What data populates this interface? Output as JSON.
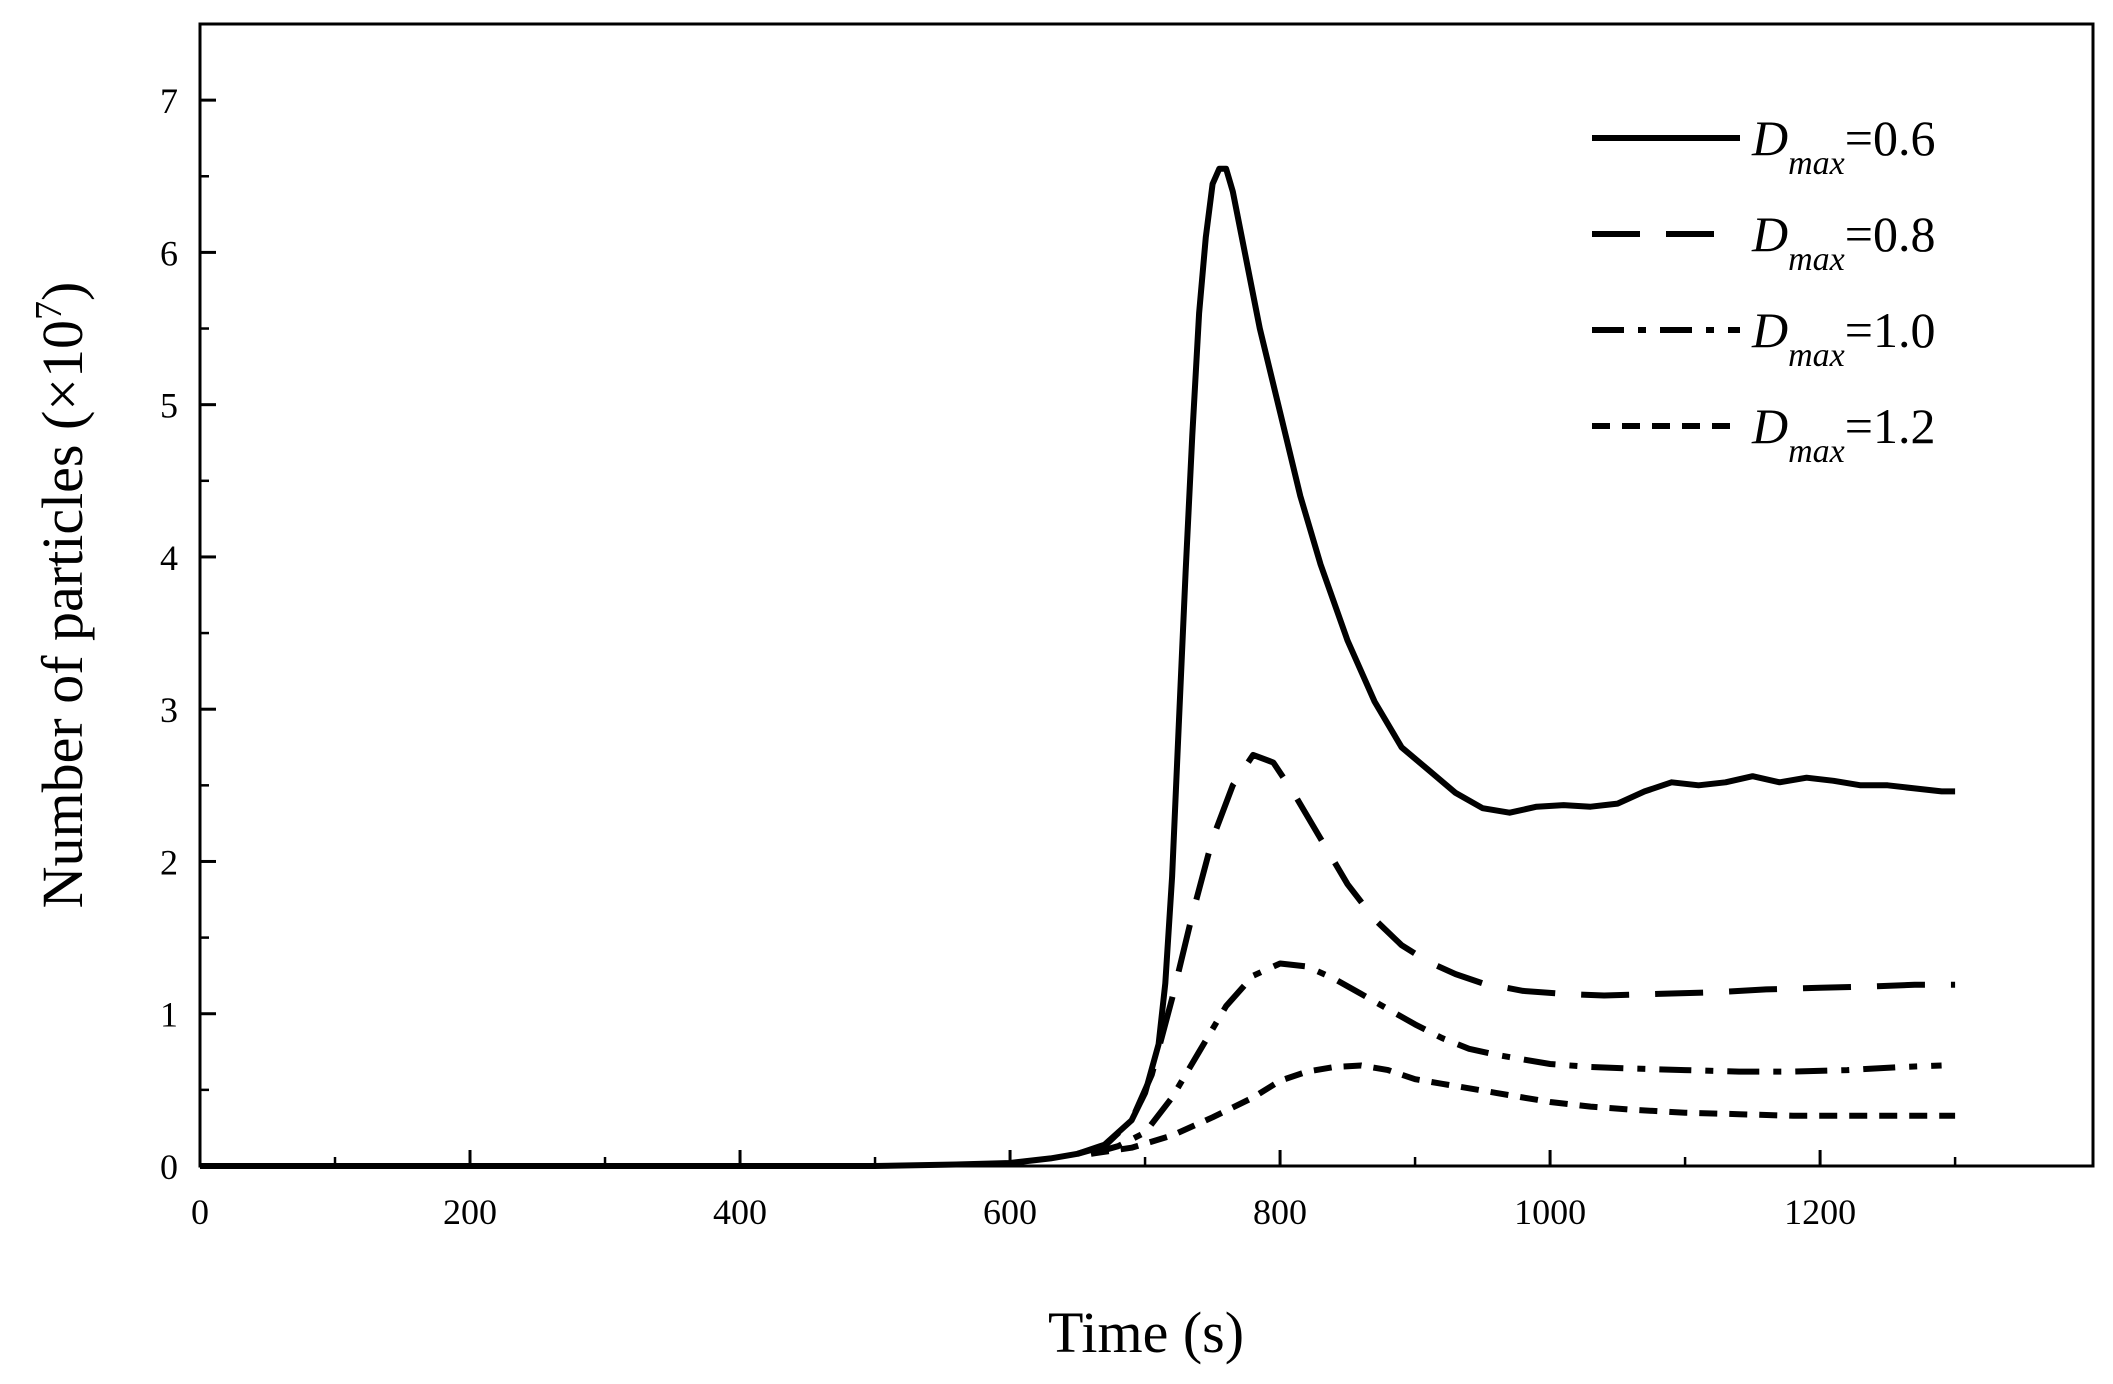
{
  "chart_data": {
    "type": "line",
    "title": "",
    "xlabel": "Time (s)",
    "ylabel": {
      "main": "Number of  particles (×10",
      "sup": "7",
      "close": ")"
    },
    "xlim": [
      0,
      1350
    ],
    "ylim": [
      0,
      7.5
    ],
    "xticks": [
      0,
      200,
      400,
      600,
      800,
      1000,
      1200
    ],
    "xtick_labels": [
      "0",
      "200",
      "400",
      "600",
      "800",
      "1000",
      "1200"
    ],
    "x_minor_step": 100,
    "yticks": [
      0,
      1,
      2,
      3,
      4,
      5,
      6,
      7
    ],
    "ytick_labels": [
      "0",
      "1",
      "2",
      "3",
      "4",
      "5",
      "6",
      "7"
    ],
    "y_minor_step": 0.5,
    "grid": false,
    "legend": "top-right",
    "series": [
      {
        "name": "D_max=0.6",
        "legend": {
          "base": "D",
          "sub": "max",
          "suffix": "=0.6"
        },
        "style": "solid",
        "color": "#000000",
        "points": [
          [
            0,
            0
          ],
          [
            500,
            0
          ],
          [
            560,
            0.01
          ],
          [
            600,
            0.02
          ],
          [
            630,
            0.05
          ],
          [
            650,
            0.08
          ],
          [
            670,
            0.14
          ],
          [
            690,
            0.3
          ],
          [
            700,
            0.48
          ],
          [
            710,
            0.8
          ],
          [
            715,
            1.2
          ],
          [
            720,
            1.9
          ],
          [
            725,
            2.9
          ],
          [
            730,
            3.9
          ],
          [
            735,
            4.8
          ],
          [
            740,
            5.6
          ],
          [
            745,
            6.1
          ],
          [
            750,
            6.45
          ],
          [
            755,
            6.55
          ],
          [
            760,
            6.55
          ],
          [
            765,
            6.4
          ],
          [
            775,
            5.95
          ],
          [
            785,
            5.5
          ],
          [
            800,
            4.95
          ],
          [
            815,
            4.4
          ],
          [
            830,
            3.95
          ],
          [
            850,
            3.45
          ],
          [
            870,
            3.05
          ],
          [
            890,
            2.75
          ],
          [
            910,
            2.6
          ],
          [
            930,
            2.45
          ],
          [
            950,
            2.35
          ],
          [
            970,
            2.32
          ],
          [
            990,
            2.36
          ],
          [
            1010,
            2.37
          ],
          [
            1030,
            2.36
          ],
          [
            1050,
            2.38
          ],
          [
            1070,
            2.46
          ],
          [
            1090,
            2.52
          ],
          [
            1110,
            2.5
          ],
          [
            1130,
            2.52
          ],
          [
            1150,
            2.56
          ],
          [
            1170,
            2.52
          ],
          [
            1190,
            2.55
          ],
          [
            1210,
            2.53
          ],
          [
            1230,
            2.5
          ],
          [
            1250,
            2.5
          ],
          [
            1270,
            2.48
          ],
          [
            1290,
            2.46
          ],
          [
            1300,
            2.46
          ]
        ]
      },
      {
        "name": "D_max=0.8",
        "legend": {
          "base": "D",
          "sub": "max",
          "suffix": "=0.8"
        },
        "style": "dashed",
        "color": "#000000",
        "points": [
          [
            650,
            0.08
          ],
          [
            670,
            0.13
          ],
          [
            690,
            0.3
          ],
          [
            705,
            0.6
          ],
          [
            720,
            1.1
          ],
          [
            735,
            1.65
          ],
          [
            750,
            2.15
          ],
          [
            765,
            2.5
          ],
          [
            780,
            2.7
          ],
          [
            795,
            2.65
          ],
          [
            810,
            2.45
          ],
          [
            830,
            2.15
          ],
          [
            850,
            1.85
          ],
          [
            870,
            1.62
          ],
          [
            890,
            1.45
          ],
          [
            910,
            1.34
          ],
          [
            930,
            1.26
          ],
          [
            950,
            1.2
          ],
          [
            980,
            1.15
          ],
          [
            1010,
            1.13
          ],
          [
            1040,
            1.12
          ],
          [
            1080,
            1.13
          ],
          [
            1120,
            1.14
          ],
          [
            1160,
            1.16
          ],
          [
            1200,
            1.17
          ],
          [
            1240,
            1.18
          ],
          [
            1270,
            1.19
          ],
          [
            1300,
            1.19
          ]
        ]
      },
      {
        "name": "D_max=1.0",
        "legend": {
          "base": "D",
          "sub": "max",
          "suffix": "=1.0"
        },
        "style": "dashdot",
        "color": "#000000",
        "points": [
          [
            660,
            0.08
          ],
          [
            680,
            0.13
          ],
          [
            700,
            0.22
          ],
          [
            720,
            0.45
          ],
          [
            740,
            0.75
          ],
          [
            760,
            1.05
          ],
          [
            780,
            1.25
          ],
          [
            800,
            1.33
          ],
          [
            820,
            1.31
          ],
          [
            840,
            1.23
          ],
          [
            860,
            1.13
          ],
          [
            880,
            1.03
          ],
          [
            900,
            0.93
          ],
          [
            920,
            0.84
          ],
          [
            940,
            0.77
          ],
          [
            960,
            0.73
          ],
          [
            980,
            0.7
          ],
          [
            1000,
            0.67
          ],
          [
            1030,
            0.65
          ],
          [
            1060,
            0.64
          ],
          [
            1100,
            0.63
          ],
          [
            1140,
            0.62
          ],
          [
            1180,
            0.62
          ],
          [
            1220,
            0.63
          ],
          [
            1260,
            0.65
          ],
          [
            1290,
            0.66
          ]
        ]
      },
      {
        "name": "D_max=1.2",
        "legend": {
          "base": "D",
          "sub": "max",
          "suffix": "=1.2"
        },
        "style": "dotted",
        "color": "#000000",
        "points": [
          [
            660,
            0.08
          ],
          [
            690,
            0.12
          ],
          [
            720,
            0.2
          ],
          [
            750,
            0.32
          ],
          [
            780,
            0.45
          ],
          [
            800,
            0.56
          ],
          [
            820,
            0.62
          ],
          [
            840,
            0.65
          ],
          [
            860,
            0.66
          ],
          [
            880,
            0.63
          ],
          [
            900,
            0.57
          ],
          [
            920,
            0.54
          ],
          [
            940,
            0.51
          ],
          [
            960,
            0.48
          ],
          [
            980,
            0.45
          ],
          [
            1000,
            0.42
          ],
          [
            1030,
            0.39
          ],
          [
            1060,
            0.37
          ],
          [
            1100,
            0.35
          ],
          [
            1140,
            0.34
          ],
          [
            1180,
            0.33
          ],
          [
            1220,
            0.33
          ],
          [
            1260,
            0.33
          ],
          [
            1300,
            0.33
          ]
        ]
      }
    ]
  }
}
